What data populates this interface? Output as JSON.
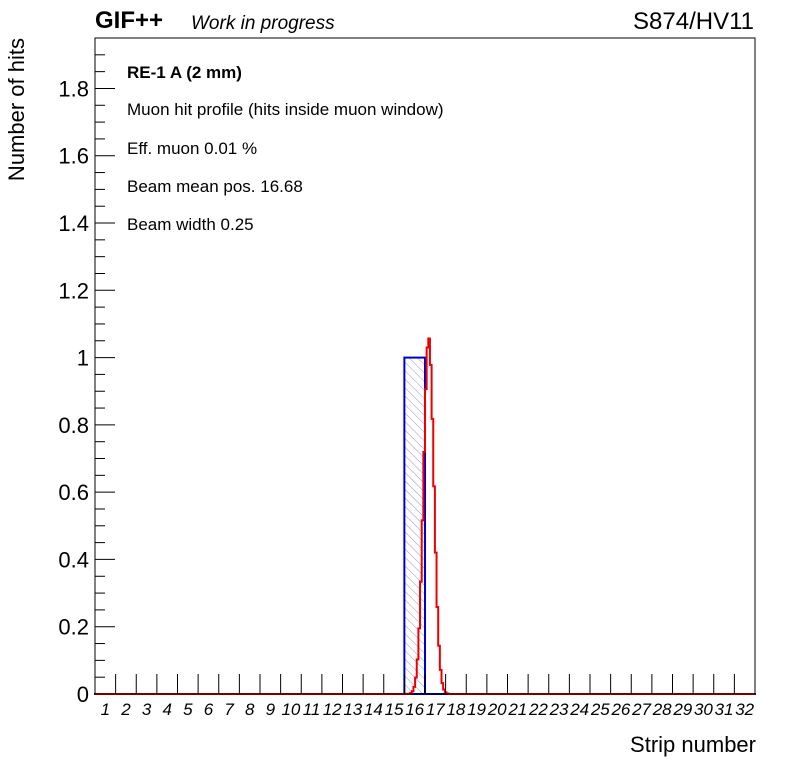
{
  "header": {
    "brand": "GIF++",
    "status": "Work in progress",
    "run_label": "S874/HV11"
  },
  "annotations": [
    {
      "text": "RE-1 A (2 mm)",
      "bold": true
    },
    {
      "text": "Muon hit profile (hits inside muon window)",
      "bold": false
    },
    {
      "text": "Eff. muon 0.01 %",
      "bold": false
    },
    {
      "text": "Beam mean pos. 16.68",
      "bold": false
    },
    {
      "text": "Beam width 0.25",
      "bold": false
    }
  ],
  "colors": {
    "histogram": "#0000cc",
    "fit": "#ee0000",
    "hatch": "#7777cc",
    "axis": "#000000"
  },
  "chart_data": {
    "type": "bar",
    "xlabel": "Strip number",
    "ylabel": "Number of hits",
    "xlim": [
      0.5,
      32.5
    ],
    "ylim": [
      0,
      1.95
    ],
    "y_ticks": [
      0,
      0.2,
      0.4,
      0.6,
      0.8,
      1,
      1.2,
      1.4,
      1.6,
      1.8
    ],
    "categories": [
      "1",
      "2",
      "3",
      "4",
      "5",
      "6",
      "7",
      "8",
      "9",
      "10",
      "11",
      "12",
      "13",
      "14",
      "15",
      "16",
      "17",
      "18",
      "19",
      "20",
      "21",
      "22",
      "23",
      "24",
      "25",
      "26",
      "27",
      "28",
      "29",
      "30",
      "31",
      "32"
    ],
    "series": [
      {
        "style": "histogram",
        "values": [
          0,
          0,
          0,
          0,
          0,
          0,
          0,
          0,
          0,
          0,
          0,
          0,
          0,
          0,
          0,
          1,
          0,
          0,
          0,
          0,
          0,
          0,
          0,
          0,
          0,
          0,
          0,
          0,
          0,
          0,
          0,
          0
        ]
      },
      {
        "style": "fit-curve",
        "gaussian": {
          "amplitude": 1.06,
          "mean": 16.68,
          "sigma": 0.25
        }
      }
    ]
  }
}
